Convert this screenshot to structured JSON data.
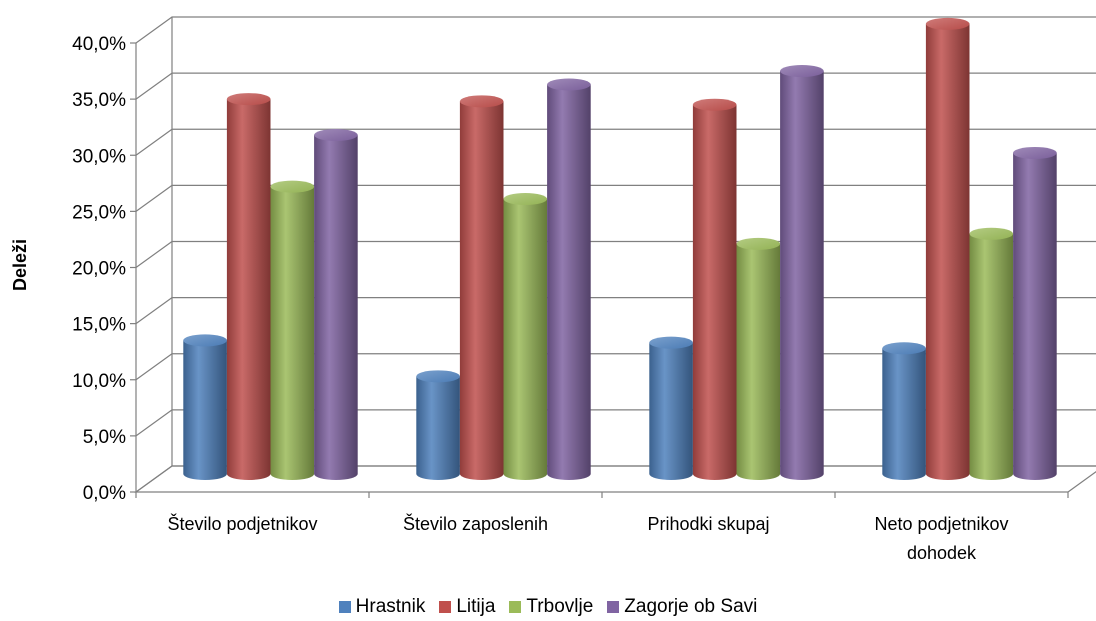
{
  "chart_data": {
    "type": "bar",
    "title": "",
    "xlabel": "",
    "ylabel": "Deleži",
    "ylim": [
      0,
      40
    ],
    "y_ticks": [
      "0,0%",
      "5,0%",
      "10,0%",
      "15,0%",
      "20,0%",
      "25,0%",
      "30,0%",
      "35,0%",
      "40,0%"
    ],
    "categories": [
      [
        "Število podjetnikov"
      ],
      [
        "Število zaposlenih"
      ],
      [
        "Prihodki skupaj"
      ],
      [
        "Neto podjetnikov",
        "dohodek"
      ]
    ],
    "series": [
      {
        "name": "Hrastnik",
        "color": "#4F81BD",
        "values": [
          11.9,
          8.7,
          11.7,
          11.2
        ]
      },
      {
        "name": "Litija",
        "color": "#C0504D",
        "values": [
          33.4,
          33.2,
          32.9,
          40.1
        ]
      },
      {
        "name": "Trbovlje",
        "color": "#9BBB59",
        "values": [
          25.6,
          24.5,
          20.5,
          21.4
        ]
      },
      {
        "name": "Zagorje ob Savi",
        "color": "#8064A2",
        "values": [
          30.2,
          34.7,
          35.9,
          28.6
        ]
      }
    ],
    "grid": true,
    "legend_position": "bottom",
    "style": "3d-cylinder"
  }
}
